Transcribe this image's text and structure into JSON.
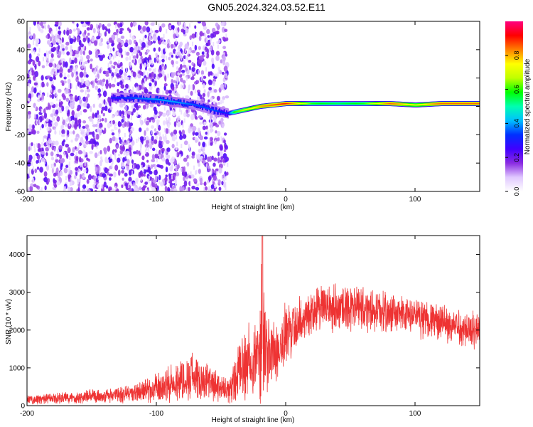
{
  "title": "GN05.2024.324.03.52.E11",
  "chart_data": [
    {
      "type": "heatmap",
      "title": "GN05.2024.324.03.52.E11",
      "xlabel": "Height of straight line (km)",
      "ylabel": "Frequency (Hz)",
      "xlim": [
        -200,
        150
      ],
      "ylim": [
        -60,
        60
      ],
      "xticks": [
        -200,
        -100,
        0,
        100
      ],
      "yticks": [
        60,
        40,
        20,
        0,
        -20,
        -40,
        -60
      ],
      "colorbar": {
        "label": "Normalized spectral amplitude",
        "range": [
          0,
          1
        ],
        "ticks": [
          0.0,
          0.2,
          0.4,
          0.6,
          0.8
        ],
        "colors": [
          "#ffffff",
          "#e0c8ff",
          "#8a2be2",
          "#4000ff",
          "#0030ff",
          "#00c0ff",
          "#00ffb0",
          "#00ff00",
          "#c0ff00",
          "#ffff00",
          "#ff8000",
          "#ff0000",
          "#ff0080"
        ]
      },
      "features": {
        "noise_region_x": [
          -200,
          -45
        ],
        "noise_color_amplitude": 0.15,
        "trace": [
          {
            "x": -135,
            "y": 6,
            "amp": 0.3
          },
          {
            "x": -120,
            "y": 6,
            "amp": 0.35
          },
          {
            "x": -100,
            "y": 5,
            "amp": 0.4
          },
          {
            "x": -85,
            "y": 3,
            "amp": 0.4
          },
          {
            "x": -70,
            "y": 1,
            "amp": 0.35
          },
          {
            "x": -55,
            "y": -3,
            "amp": 0.35
          },
          {
            "x": -45,
            "y": -5,
            "amp": 0.3
          },
          {
            "x": -40,
            "y": -4,
            "amp": 0.6
          },
          {
            "x": -30,
            "y": -2,
            "amp": 0.7
          },
          {
            "x": -20,
            "y": 0,
            "amp": 0.8
          },
          {
            "x": -10,
            "y": 1,
            "amp": 0.85
          },
          {
            "x": 0,
            "y": 2,
            "amp": 0.9
          },
          {
            "x": 20,
            "y": 2,
            "amp": 0.6
          },
          {
            "x": 40,
            "y": 2,
            "amp": 0.55
          },
          {
            "x": 60,
            "y": 2,
            "amp": 0.6
          },
          {
            "x": 80,
            "y": 2,
            "amp": 0.85
          },
          {
            "x": 100,
            "y": 1,
            "amp": 0.7
          },
          {
            "x": 120,
            "y": 2,
            "amp": 0.85
          },
          {
            "x": 150,
            "y": 2,
            "amp": 0.85
          }
        ]
      }
    },
    {
      "type": "line",
      "xlabel": "Height of straight line (km)",
      "ylabel": "SNR (10 * v/v)",
      "xlim": [
        -200,
        150
      ],
      "ylim": [
        0,
        4500
      ],
      "xticks": [
        -200,
        -100,
        0,
        100
      ],
      "yticks": [
        0,
        1000,
        2000,
        3000,
        4000
      ],
      "color": "#ee3333",
      "series": [
        {
          "x": [
            -200,
            -180,
            -160,
            -140,
            -120,
            -110,
            -100,
            -90,
            -80,
            -70,
            -60,
            -50,
            -45,
            -40,
            -35,
            -30,
            -25,
            -20,
            -18,
            -15,
            -10,
            0,
            10,
            20,
            30,
            40,
            50,
            60,
            70,
            80,
            90,
            100,
            110,
            120,
            130,
            140,
            150
          ],
          "center": [
            150,
            180,
            220,
            260,
            320,
            380,
            450,
            550,
            700,
            800,
            600,
            450,
            350,
            600,
            900,
            1200,
            1300,
            1400,
            1600,
            1300,
            1400,
            1800,
            2200,
            2500,
            2600,
            2600,
            2600,
            2550,
            2500,
            2450,
            2400,
            2350,
            2300,
            2200,
            2100,
            2050,
            2000
          ],
          "amplitude": [
            150,
            170,
            200,
            220,
            300,
            350,
            450,
            550,
            700,
            750,
            550,
            450,
            350,
            700,
            1000,
            1300,
            1200,
            1400,
            2900,
            1300,
            1200,
            1100,
            800,
            700,
            700,
            800,
            700,
            700,
            600,
            600,
            600,
            600,
            600,
            550,
            550,
            600,
            600
          ]
        }
      ]
    }
  ]
}
